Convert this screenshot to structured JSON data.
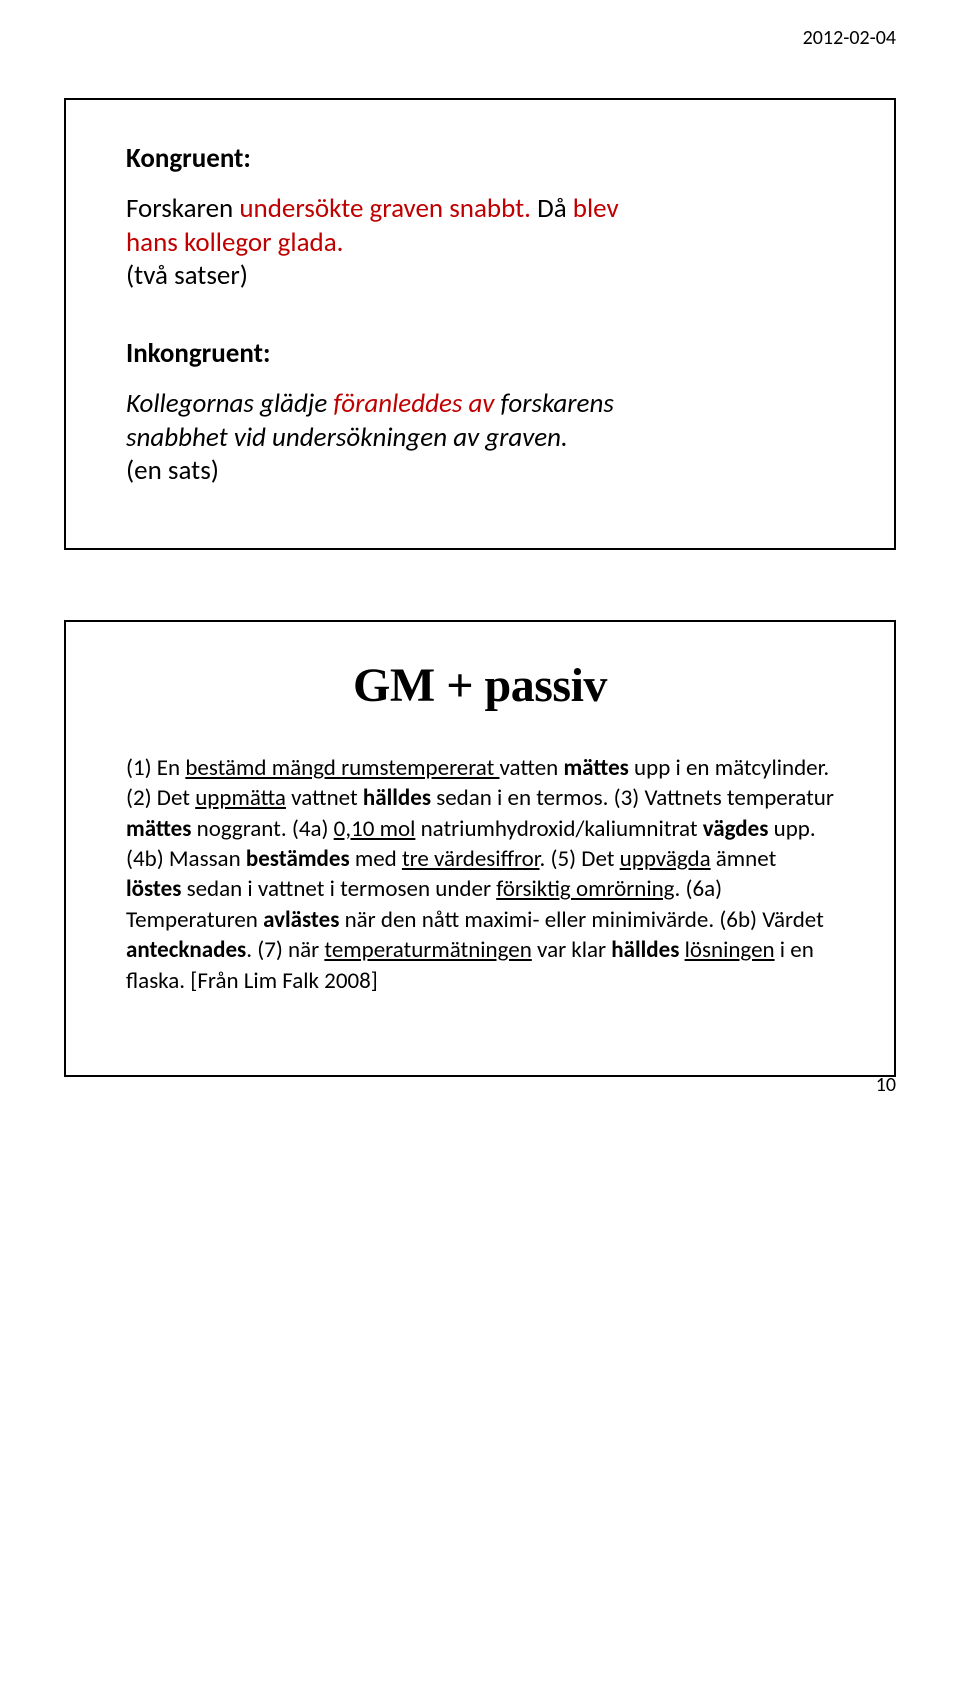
{
  "header": {
    "date": "2012-02-04"
  },
  "footer": {
    "page_number": "10"
  },
  "slide1": {
    "heading1": "Kongruent:",
    "line1a": "Forskaren ",
    "line1b_red": "undersökte graven snabbt. ",
    "line1c": "Då ",
    "line1d_red": "blev",
    "line2_red": "hans kollegor glada.",
    "line3": "(två satser)",
    "heading2": "Inkongruent:",
    "line4a_ital": "Kollegornas glädje ",
    "line4b_red_ital": "föranleddes av ",
    "line4c_ital": "forskarens",
    "line5_ital": "snabbhet vid undersökningen av graven.",
    "line6": "(en sats)"
  },
  "slide2": {
    "heading": "GM + passiv",
    "t1": "(1) En ",
    "u1": "bestämd mängd ",
    "u2": "rumstempererat ",
    "t2": "vatten ",
    "b1": "mättes",
    "t3": " upp i en mätcylinder. (2) Det ",
    "u3": "uppmätta",
    "t4": " vattnet ",
    "b2": "hälldes",
    "t5": " sedan i en termos. (3) Vattnets temperatur ",
    "b3": "mättes",
    "t6": " noggrant. (4a) ",
    "u4": "0,10 mol",
    "t7": " natriumhydroxid/kaliumnitrat ",
    "b4": "vägdes",
    "t8": " upp. (4b) Massan ",
    "b5": "bestämdes",
    "t9": " med ",
    "u5": "tre värdesiffror",
    "t10": ". (5) Det ",
    "u6": "uppvägda",
    "t11": " ämnet ",
    "b6": "löstes",
    "t12": " sedan i vattnet i termosen under ",
    "u7": "försiktig ",
    "u8": "omrörning",
    "t13": ". (6a) Temperaturen ",
    "b7": "avlästes",
    "t14": " när den nått maximi- eller minimivärde. (6b) Värdet ",
    "b8": "antecknades",
    "t15": ". (7) när ",
    "u9": "temperaturmätningen",
    "t16": " var klar ",
    "b9": "hälldes",
    "t17": " ",
    "u10": "lösningen",
    "t18": " i en flaska. [Från Lim Falk 2008]"
  },
  "colors": {
    "red": "#c00000",
    "black": "#000000",
    "background": "#ffffff"
  }
}
